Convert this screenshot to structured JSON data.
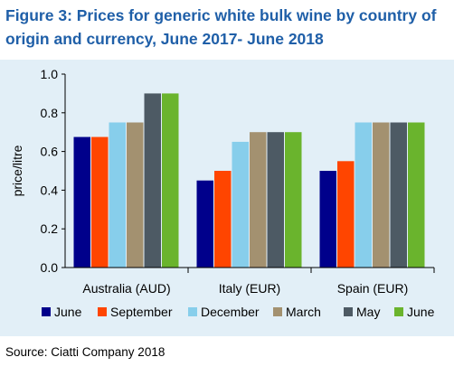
{
  "figure": {
    "title_line1": "Figure 3: Prices for generic white bulk wine by country of",
    "title_line2": "origin and currency, June 2017- June 2018",
    "source": "Source: Ciatti Company 2018"
  },
  "chart_data": {
    "type": "bar",
    "title": "Figure 3: Prices for generic white bulk wine by country of origin and currency, June 2017- June 2018",
    "ylabel": "price/litre",
    "xlabel": "",
    "ylim": [
      0,
      1.0
    ],
    "yticks": [
      "0.0",
      "0.2",
      "0.4",
      "0.6",
      "0.8",
      "1.0"
    ],
    "grid": false,
    "legend_position": "bottom",
    "categories": [
      "Australia (AUD)",
      "Italy (EUR)",
      "Spain (EUR)"
    ],
    "series": [
      {
        "name": "June",
        "color": "#00008b",
        "values": [
          0.675,
          0.45,
          0.5
        ]
      },
      {
        "name": "September",
        "color": "#ff4500",
        "values": [
          0.675,
          0.5,
          0.55
        ]
      },
      {
        "name": "December",
        "color": "#87ceeb",
        "values": [
          0.75,
          0.65,
          0.75
        ]
      },
      {
        "name": "March",
        "color": "#a39170",
        "values": [
          0.75,
          0.7,
          0.75
        ]
      },
      {
        "name": "May",
        "color": "#4d5a64",
        "values": [
          0.9,
          0.7,
          0.75
        ]
      },
      {
        "name": "June",
        "color": "#6ab42d",
        "values": [
          0.9,
          0.7,
          0.75
        ]
      }
    ]
  }
}
